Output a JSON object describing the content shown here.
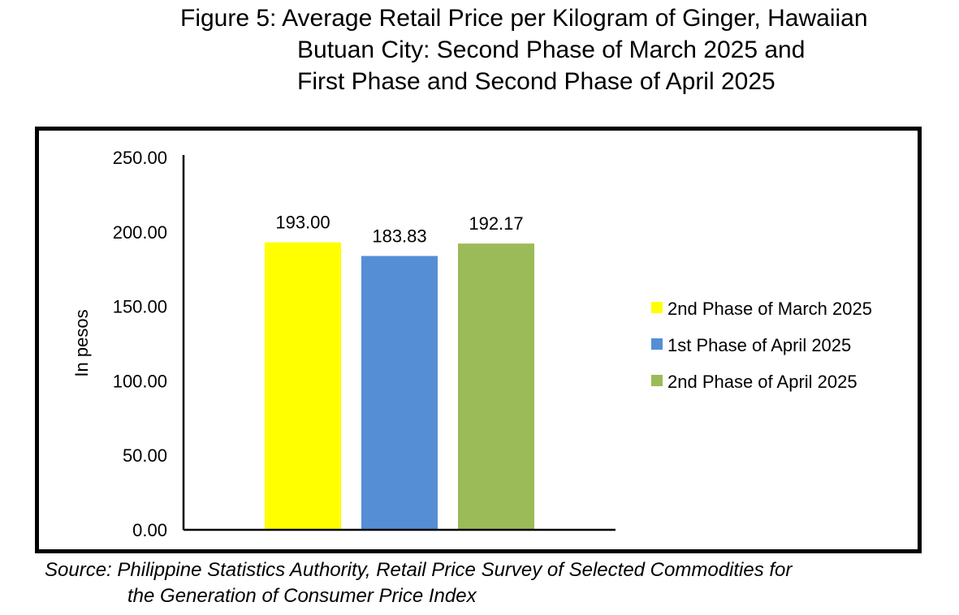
{
  "title": {
    "line1": "Figure 5: Average Retail Price per Kilogram of Ginger, Hawaiian",
    "line2": "Butuan City: Second Phase of March 2025 and",
    "line3": "First Phase and Second Phase of April 2025"
  },
  "source": {
    "line1": "Source: Philippine Statistics Authority, Retail Price Survey of Selected Commodities for",
    "line2": "the Generation of Consumer Price Index"
  },
  "chart_data": {
    "type": "bar",
    "title": "Figure 5: Average Retail Price per Kilogram of Ginger, Hawaiian Butuan City: Second Phase of March 2025 and First Phase and Second Phase of April 2025",
    "xlabel": "",
    "ylabel": "In pesos",
    "ylim": [
      0,
      250
    ],
    "yticks": [
      "0.00",
      "50.00",
      "100.00",
      "150.00",
      "200.00",
      "250.00"
    ],
    "grid": false,
    "legend_position": "right",
    "series": [
      {
        "name": "2nd Phase of March 2025",
        "values": [
          193.0
        ],
        "label": "193.00",
        "color": "#FFFF00"
      },
      {
        "name": "1st Phase of April 2025",
        "values": [
          183.83
        ],
        "label": "183.83",
        "color": "#558ED5"
      },
      {
        "name": "2nd Phase of April 2025",
        "values": [
          192.17
        ],
        "label": "192.17",
        "color": "#9BBB59"
      }
    ]
  }
}
